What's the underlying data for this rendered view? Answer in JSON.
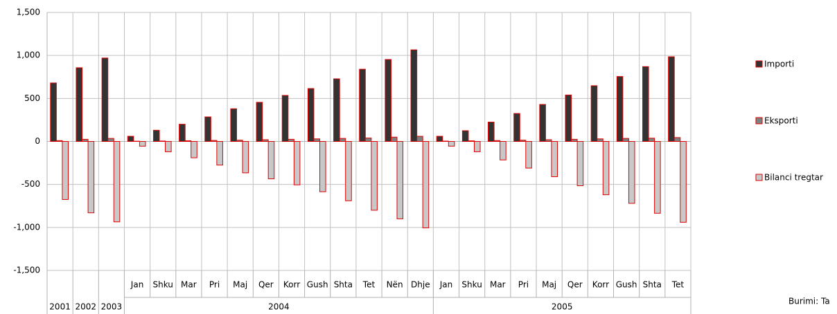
{
  "chart_data": {
    "type": "bar",
    "groups": [
      {
        "label": "2001",
        "categories": [
          null
        ]
      },
      {
        "label": "2002",
        "categories": [
          null
        ]
      },
      {
        "label": "2003",
        "categories": [
          null
        ]
      },
      {
        "label": "2004",
        "categories": [
          "Jan",
          "Shku",
          "Mar",
          "Pri",
          "Maj",
          "Qer",
          "Korr",
          "Gush",
          "Shta",
          "Tet",
          "Nën",
          "Dhje"
        ]
      },
      {
        "label": "2005",
        "categories": [
          "Jan",
          "Shku",
          "Mar",
          "Pri",
          "Maj",
          "Qer",
          "Korr",
          "Gush",
          "Shta",
          "Tet"
        ]
      }
    ],
    "series": [
      {
        "name": "Importi",
        "color": "#333333",
        "values": [
          680,
          857,
          970,
          60,
          130,
          200,
          285,
          380,
          455,
          535,
          615,
          728,
          840,
          953,
          1065,
          60,
          125,
          225,
          325,
          430,
          540,
          648,
          755,
          870,
          985
        ]
      },
      {
        "name": "Eksporti",
        "color": "#808080",
        "values": [
          10,
          25,
          35,
          3,
          5,
          8,
          12,
          15,
          20,
          25,
          30,
          35,
          40,
          50,
          60,
          4,
          7,
          10,
          15,
          20,
          25,
          30,
          35,
          38,
          45
        ]
      },
      {
        "name": "Bilanci tregtar",
        "color": "#c8c8c8",
        "values": [
          -675,
          -830,
          -935,
          -55,
          -120,
          -190,
          -275,
          -365,
          -435,
          -505,
          -585,
          -690,
          -800,
          -900,
          -1005,
          -55,
          -120,
          -215,
          -310,
          -410,
          -515,
          -620,
          -720,
          -835,
          -940
        ]
      }
    ],
    "bar_border_color": "#e00000",
    "ylim": [
      -1500,
      1500
    ],
    "yticks": [
      {
        "value": -1500,
        "label": "-1,500"
      },
      {
        "value": -1000,
        "label": "-1,000"
      },
      -500,
      0,
      500,
      {
        "value": 1000,
        "label": "1,000"
      },
      {
        "value": 1500,
        "label": "1,500"
      }
    ],
    "grid": true,
    "legend_position": "right",
    "source": "Burimi: Ta"
  }
}
